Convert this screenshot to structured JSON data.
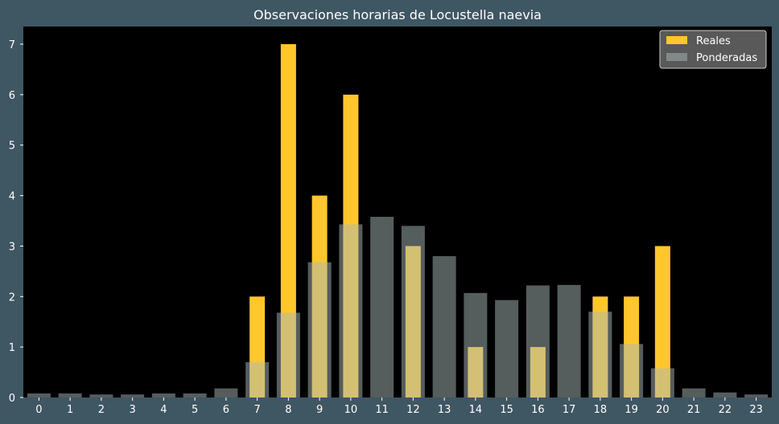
{
  "chart_data": {
    "type": "bar",
    "title": "Observaciones horarias de Locustella naevia",
    "xlabel": "",
    "ylabel": "",
    "categories": [
      "0",
      "1",
      "2",
      "3",
      "4",
      "5",
      "6",
      "7",
      "8",
      "9",
      "10",
      "11",
      "12",
      "13",
      "14",
      "15",
      "16",
      "17",
      "18",
      "19",
      "20",
      "21",
      "22",
      "23"
    ],
    "series": [
      {
        "name": "Reales",
        "color": "#ffc72c",
        "values": [
          0,
          0,
          0,
          0,
          0,
          0,
          0,
          2,
          7,
          4,
          6,
          0,
          3,
          0,
          1,
          0,
          1,
          0,
          2,
          2,
          3,
          0,
          0,
          0
        ]
      },
      {
        "name": "Ponderadas",
        "color": "#a9b9b9",
        "opacity": 0.5,
        "values": [
          0.08,
          0.08,
          0.06,
          0.06,
          0.08,
          0.08,
          0.18,
          0.7,
          1.68,
          2.68,
          3.43,
          3.58,
          3.4,
          2.8,
          2.07,
          1.93,
          2.22,
          2.23,
          1.7,
          1.06,
          0.58,
          0.18,
          0.1,
          0.06
        ]
      }
    ],
    "ylim": [
      0,
      7.35
    ],
    "yticks": [
      0,
      1,
      2,
      3,
      4,
      5,
      6,
      7
    ],
    "grid": false,
    "legend_position": "top-right",
    "plot_background": "#000000",
    "figure_background": "#3f5663"
  }
}
